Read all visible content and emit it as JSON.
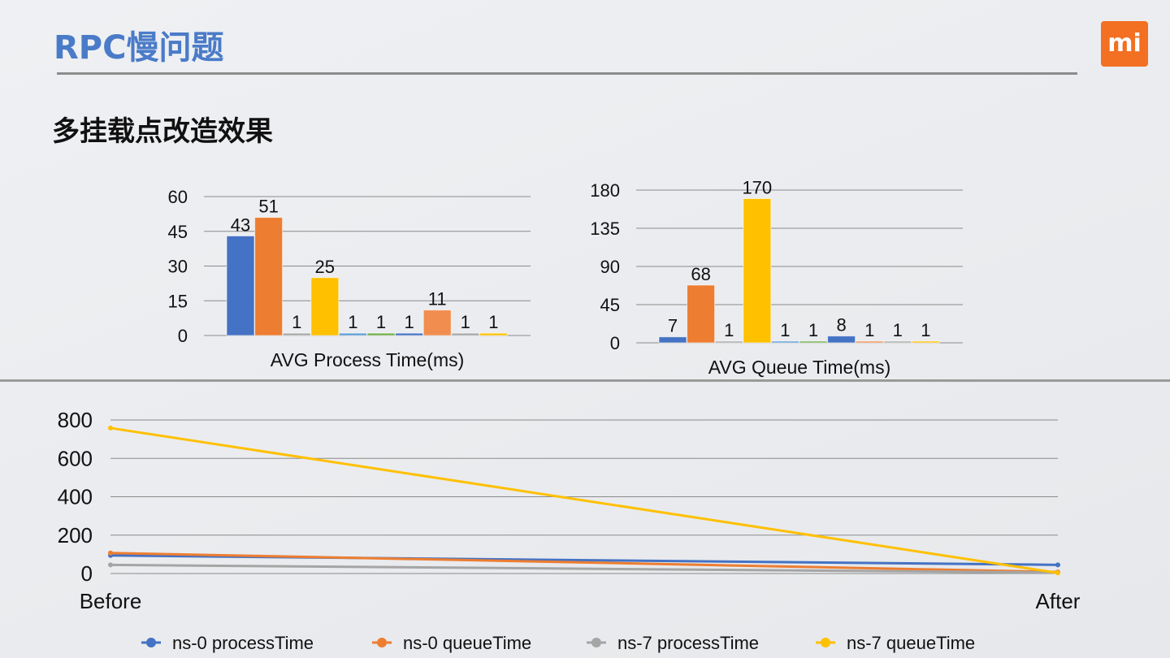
{
  "slide": {
    "title": "RPC慢问题",
    "subtitle": "多挂载点改造效果",
    "logo": "mi-logo"
  },
  "chart_data": [
    {
      "type": "bar",
      "xlabel": "AVG Process Time(ms)",
      "ylim": [
        0,
        60
      ],
      "yticks": [
        0,
        15,
        30,
        45,
        60
      ],
      "grid": true,
      "values": [
        43,
        51,
        1,
        25,
        1,
        1,
        1,
        11,
        1,
        1
      ],
      "labels": [
        "43",
        "51",
        "1",
        "25",
        "1",
        "1",
        "1",
        "11",
        "1",
        "1"
      ],
      "colors": [
        "#4472c4",
        "#ed7d31",
        "#a5a5a5",
        "#ffc000",
        "#5b9bd5",
        "#70ad47",
        "#4472c4",
        "#f08d4f",
        "#a5a5a5",
        "#ffc000"
      ]
    },
    {
      "type": "bar",
      "xlabel": "AVG Queue Time(ms)",
      "ylim": [
        0,
        180
      ],
      "yticks": [
        0,
        45,
        90,
        135,
        180
      ],
      "grid": true,
      "values": [
        7,
        68,
        1,
        170,
        1,
        1,
        8,
        1,
        1,
        1
      ],
      "labels": [
        "7",
        "68",
        "1",
        "170",
        "1",
        "1",
        "8",
        "1",
        "1",
        "1"
      ],
      "colors": [
        "#4472c4",
        "#ed7d31",
        "#a5a5a5",
        "#ffc000",
        "#5b9bd5",
        "#70ad47",
        "#4472c4",
        "#f08d4f",
        "#a5a5a5",
        "#ffc000"
      ]
    },
    {
      "type": "line",
      "categories": [
        "Before",
        "After"
      ],
      "ylim": [
        0,
        800
      ],
      "yticks": [
        0,
        200,
        400,
        600,
        800
      ],
      "grid": true,
      "legend_position": "bottom",
      "series": [
        {
          "name": "ns-0 processTime",
          "values": [
            94,
            45
          ],
          "color": "#4472c4"
        },
        {
          "name": "ns-0 queueTime",
          "values": [
            107,
            8
          ],
          "color": "#ed7d31"
        },
        {
          "name": "ns-7 processTime",
          "values": [
            45,
            5
          ],
          "color": "#a5a5a5"
        },
        {
          "name": "ns-7 queueTime",
          "values": [
            758,
            3
          ],
          "color": "#ffc000"
        }
      ]
    }
  ]
}
